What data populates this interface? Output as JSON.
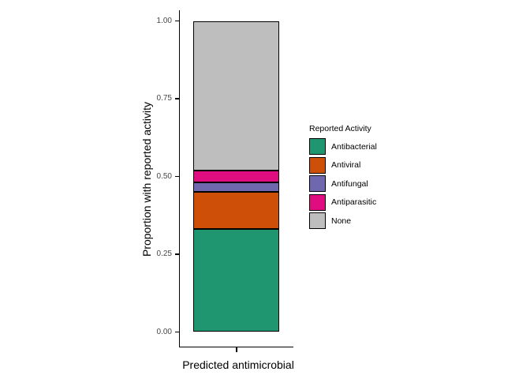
{
  "chart_data": {
    "type": "bar",
    "stacked": true,
    "categories": [
      ""
    ],
    "series": [
      {
        "name": "Antibacterial",
        "values": [
          0.33
        ],
        "color": "#1F9670"
      },
      {
        "name": "Antiviral",
        "values": [
          0.12
        ],
        "color": "#CE5008"
      },
      {
        "name": "Antifungal",
        "values": [
          0.03
        ],
        "color": "#7068AE"
      },
      {
        "name": "Antiparasitic",
        "values": [
          0.04
        ],
        "color": "#E00D80"
      },
      {
        "name": "None",
        "values": [
          0.48
        ],
        "color": "#BEBEBE"
      }
    ],
    "title": "",
    "xlabel": "Predicted antimicrobial",
    "ylabel": "Proportion with reported activity",
    "ylim": [
      0,
      1
    ],
    "yticks": [
      0.0,
      0.25,
      0.5,
      0.75,
      1.0
    ],
    "ytick_labels": [
      "0.00",
      "0.25",
      "0.50",
      "0.75",
      "1.00"
    ],
    "grid": false,
    "bar_outline_color": "#000000",
    "legend_position": "right",
    "legend_title": "Reported Activity"
  },
  "style": {
    "background": "#FFFFFF",
    "axis_color": "#000000",
    "tick_label_color": "#474747"
  }
}
